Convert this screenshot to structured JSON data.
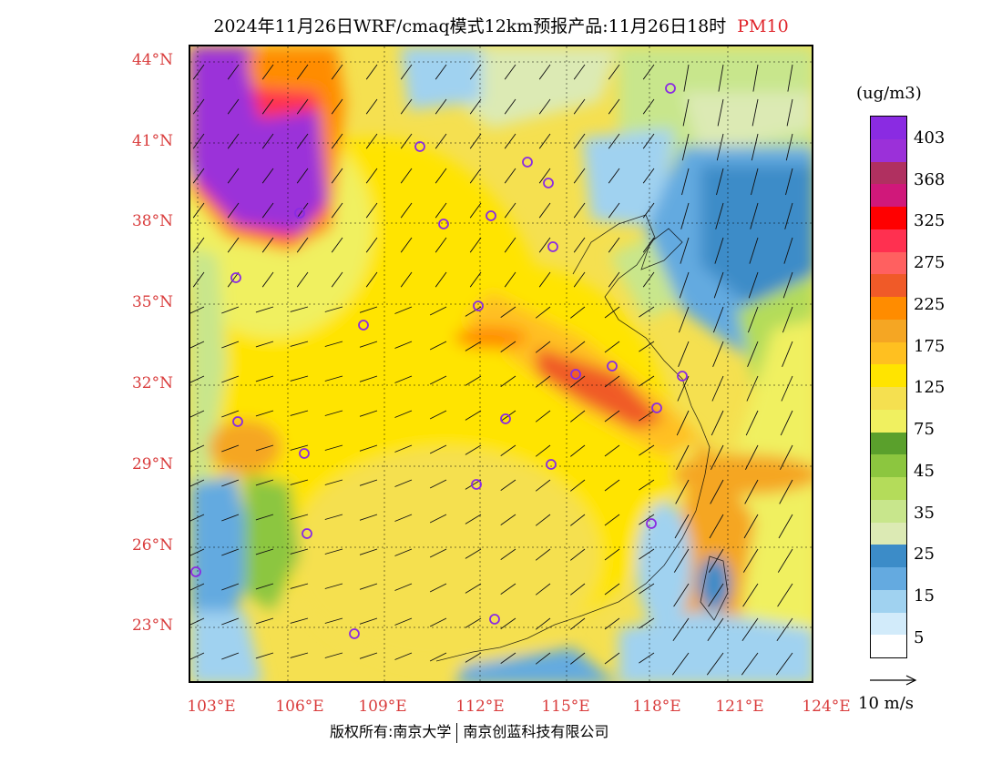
{
  "title": {
    "main": "2024年11月26日WRF/cmaq模式12km预报产品:11月26日18时",
    "pollutant": "PM10",
    "pollutant_color": "#e0262c"
  },
  "lat_labels": [
    "44°N",
    "41°N",
    "38°N",
    "35°N",
    "32°N",
    "29°N",
    "26°N",
    "23°N"
  ],
  "lon_labels": [
    "103°E",
    "106°E",
    "109°E",
    "112°E",
    "115°E",
    "118°E",
    "121°E",
    "124°E"
  ],
  "colorbar": {
    "unit": "(ug/m3)",
    "colors_top_to_bottom": [
      "#8a2be2",
      "#9b30d9",
      "#b03060",
      "#d0187a",
      "#ff0000",
      "#ff3050",
      "#ff6060",
      "#f05a28",
      "#ff8c00",
      "#f5a623",
      "#ffc020",
      "#ffe400",
      "#f5e050",
      "#f0f060",
      "#5aa02c",
      "#8cc63f",
      "#b4dc5a",
      "#c8e68c",
      "#dceab4",
      "#3c8cc8",
      "#64aae0",
      "#a0d2f0",
      "#d2ebfa",
      "#ffffff"
    ],
    "labels": [
      "403",
      "368",
      "325",
      "275",
      "225",
      "175",
      "125",
      "75",
      "45",
      "35",
      "25",
      "15",
      "5"
    ]
  },
  "wind_reference": "10 m/s",
  "footer": {
    "left": "版权所有:南京大学",
    "right": "南京创蓝科技有限公司"
  }
}
